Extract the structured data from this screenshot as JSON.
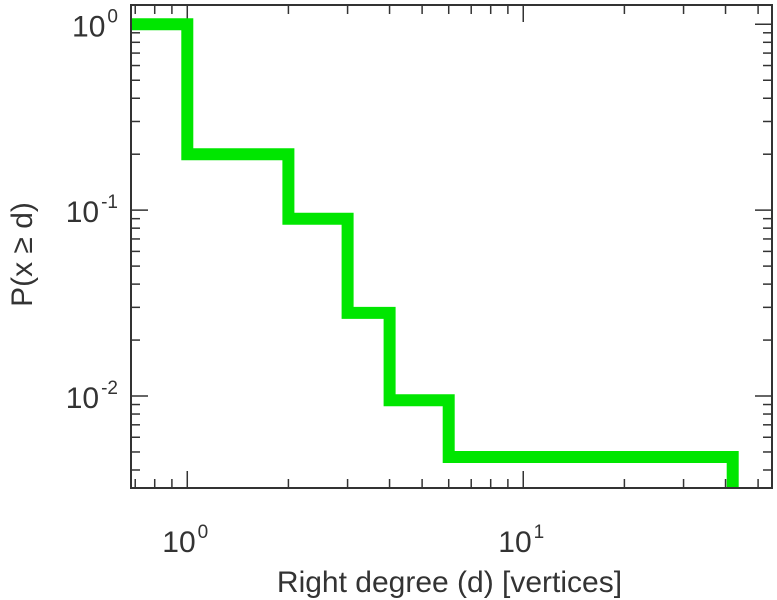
{
  "chart_data": {
    "type": "line",
    "step": true,
    "xscale": "log",
    "yscale": "log",
    "xlabel": "Right degree (d) [vertices]",
    "ylabel": "P(x ≥ d)",
    "xlim": [
      0.68,
      55
    ],
    "ylim": [
      0.0032,
      1.27
    ],
    "grid": false,
    "series": [
      {
        "color": "#00e600",
        "x": [
          0.68,
          1,
          2,
          3,
          4,
          6,
          42
        ],
        "y": [
          1.0,
          0.2,
          0.09,
          0.028,
          0.0095,
          0.0047,
          0.0032
        ]
      }
    ],
    "x_ticks": [
      {
        "value": 1,
        "base": "10",
        "exp": "0"
      },
      {
        "value": 10,
        "base": "10",
        "exp": "1"
      }
    ],
    "y_ticks": [
      {
        "value": 1,
        "base": "10",
        "exp": "0"
      },
      {
        "value": 0.1,
        "base": "10",
        "exp": "-1"
      },
      {
        "value": 0.01,
        "base": "10",
        "exp": "-2"
      }
    ]
  }
}
